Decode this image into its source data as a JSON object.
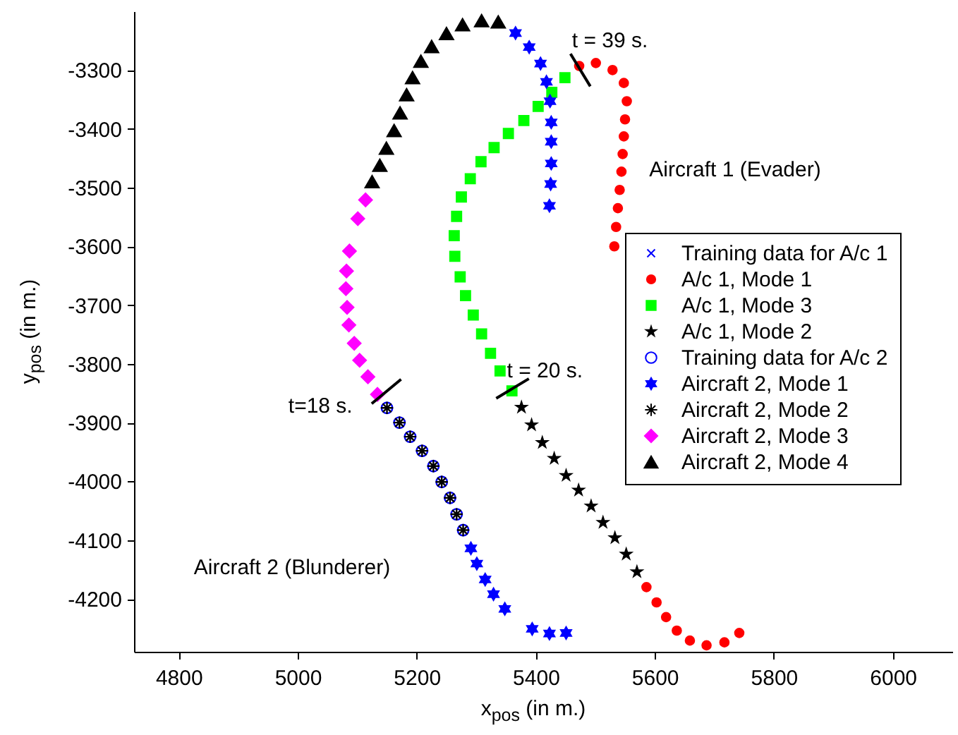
{
  "chart_data": {
    "type": "scatter",
    "xlabel": "x$_{pos}$ (in m.)",
    "ylabel": "y$_{pos}$ (in m.)",
    "xlim": [
      4725,
      6100
    ],
    "ylim": [
      -4290,
      -3200
    ],
    "xticks": [
      4800,
      5000,
      5200,
      5400,
      5600,
      5800,
      6000
    ],
    "yticks": [
      -4200,
      -4100,
      -4000,
      -3900,
      -3800,
      -3700,
      -3600,
      -3500,
      -3400,
      -3300
    ],
    "grid": false,
    "legend": "right",
    "annotations": [
      {
        "text": "t = 39 s.",
        "x": 5475,
        "y": -3300
      },
      {
        "text": "t = 20 s.",
        "x": 5361,
        "y": -3842
      },
      {
        "text": "t=18 s.",
        "x": 5149,
        "y": -3847
      },
      "Aircraft 1 (Evader)",
      "Aircraft 2 (Blunderer)"
    ],
    "series": [
      {
        "name": "Training data for A/c 1",
        "color": "#0000ff",
        "marker": "cross",
        "x": [
          null
        ],
        "values": [
          null
        ]
      },
      {
        "name": "A/c 1, Mode 1",
        "color": "#ff0000",
        "marker": "circle",
        "x": [
          5473,
          5501,
          5529,
          5548,
          5553,
          5550,
          5548,
          5546,
          5544,
          5541,
          5538,
          5535,
          5532,
          5586,
          5603,
          5619,
          5637,
          5659,
          5687,
          5717,
          5742
        ],
        "values": [
          -3293,
          -3288,
          -3300,
          -3322,
          -3353,
          -3384,
          -3413,
          -3443,
          -3473,
          -3504,
          -3535,
          -3567,
          -3600,
          -4180,
          -4206,
          -4231,
          -4254,
          -4271,
          -4279,
          -4274,
          -4258
        ]
      },
      {
        "name": "A/c 1, Mode 3",
        "color": "#00ff00",
        "marker": "square",
        "x": [
          5449,
          5427,
          5404,
          5380,
          5354,
          5330,
          5308,
          5290,
          5275,
          5267,
          5263,
          5264,
          5273,
          5282,
          5295,
          5309,
          5324,
          5340,
          5360
        ],
        "values": [
          -3313,
          -3338,
          -3362,
          -3386,
          -3408,
          -3432,
          -3456,
          -3485,
          -3516,
          -3549,
          -3582,
          -3617,
          -3652,
          -3684,
          -3717,
          -3749,
          -3782,
          -3812,
          -3846
        ]
      },
      {
        "name": "A/c 1, Mode 2",
        "color": "#000000",
        "marker": "star",
        "x": [
          5376,
          5393,
          5411,
          5431,
          5451,
          5472,
          5493,
          5513,
          5533,
          5552,
          5570
        ],
        "values": [
          -3874,
          -3904,
          -3934,
          -3961,
          -3990,
          -4015,
          -4042,
          -4070,
          -4096,
          -4124,
          -4154
        ]
      },
      {
        "name": "Training data for A/c 2",
        "color": "#0000ff",
        "marker": "circle",
        "x": [
          5150,
          5171,
          5189,
          5209,
          5228,
          5242,
          5256,
          5267,
          5278
        ],
        "values": [
          -3875,
          -3900,
          -3924,
          -3948,
          -3974,
          -4001,
          -4028,
          -4056,
          -4083
        ]
      },
      {
        "name": "Aircraft 2, Mode 1",
        "color": "#0000ff",
        "marker": "cross",
        "x": [
          5366,
          5389,
          5408,
          5418,
          5424,
          5426,
          5426,
          5426,
          5425,
          5423,
          5291,
          5301,
          5315,
          5329,
          5348,
          5394,
          5423,
          5451
        ],
        "values": [
          -3237,
          -3261,
          -3289,
          -3320,
          -3353,
          -3389,
          -3422,
          -3459,
          -3494,
          -3531,
          -4114,
          -4140,
          -4167,
          -4192,
          -4217,
          -4251,
          -4259,
          -4258
        ]
      },
      {
        "name": "Aircraft 2, Mode 2",
        "color": "#000000",
        "marker": "cross",
        "x": [
          5150,
          5171,
          5189,
          5209,
          5228,
          5242,
          5256,
          5267,
          5278
        ],
        "values": [
          -3875,
          -3900,
          -3924,
          -3948,
          -3974,
          -4001,
          -4028,
          -4056,
          -4083
        ]
      },
      {
        "name": "Aircraft 2, Mode 3",
        "color": "#ff00ff",
        "marker": "diamond",
        "x": [
          5114,
          5101,
          5087,
          5082,
          5081,
          5083,
          5086,
          5095,
          5104,
          5118,
          5134
        ],
        "values": [
          -3521,
          -3553,
          -3608,
          -3642,
          -3672,
          -3704,
          -3734,
          -3765,
          -3794,
          -3822,
          -3852
        ]
      },
      {
        "name": "Aircraft 2, Mode 4",
        "color": "#000000",
        "marker": "triangle",
        "x": [
          5125,
          5138,
          5149,
          5162,
          5172,
          5183,
          5193,
          5207,
          5225,
          5250,
          5277,
          5309,
          5337
        ],
        "values": [
          -3490,
          -3462,
          -3433,
          -3403,
          -3373,
          -3342,
          -3313,
          -3285,
          -3260,
          -3238,
          -3223,
          -3216,
          -3218
        ]
      }
    ]
  }
}
